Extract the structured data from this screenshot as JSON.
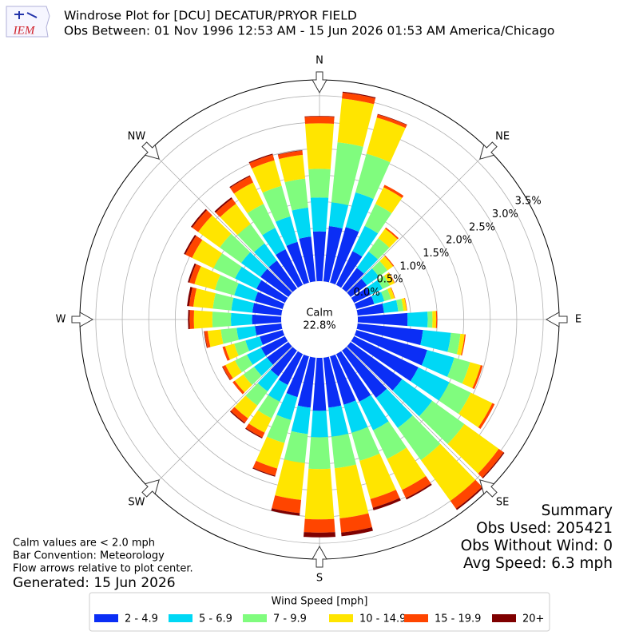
{
  "chart_data": {
    "type": "windrose",
    "logo": "IEM",
    "title": "Windrose Plot for [DCU] DECATUR/PRYOR FIELD",
    "subtitle": "Obs Between: 01 Nov 1996 12:53 AM - 15 Jun 2026 01:53 AM America/Chicago",
    "directions": [
      0,
      10,
      20,
      30,
      40,
      50,
      60,
      70,
      80,
      90,
      100,
      110,
      120,
      130,
      140,
      150,
      160,
      170,
      180,
      190,
      200,
      210,
      220,
      230,
      240,
      250,
      260,
      270,
      280,
      290,
      300,
      310,
      320,
      330,
      340,
      350
    ],
    "direction_labels": [
      {
        "value": 0,
        "label": "N"
      },
      {
        "value": 45,
        "label": "NE"
      },
      {
        "value": 90,
        "label": "E"
      },
      {
        "value": 135,
        "label": "SE"
      },
      {
        "value": 180,
        "label": "S"
      },
      {
        "value": 225,
        "label": "SW"
      },
      {
        "value": 270,
        "label": "W"
      },
      {
        "value": 315,
        "label": "NW"
      }
    ],
    "rlim": [
      0,
      3.8
    ],
    "rticks": [
      {
        "value": 0,
        "label": "0.0%"
      },
      {
        "value": 0.5,
        "label": "0.5%"
      },
      {
        "value": 1,
        "label": "1.0%"
      },
      {
        "value": 1.5,
        "label": "1.5%"
      },
      {
        "value": 2,
        "label": "2.0%"
      },
      {
        "value": 2.5,
        "label": "2.5%"
      },
      {
        "value": 3,
        "label": "3.0%"
      },
      {
        "value": 3.5,
        "label": "3.5%"
      }
    ],
    "grid": true,
    "calm_label": "Calm",
    "calm_value": 22.8,
    "calm_value_label": "22.8%",
    "legend_title": "Wind Speed [mph]",
    "series": [
      {
        "name": "2 - 4.9",
        "color": "#0b2ef5",
        "values": [
          0.94,
          1.05,
          1.09,
          0.71,
          0.48,
          0.38,
          0.35,
          0.35,
          0.5,
          0.94,
          1.24,
          1.39,
          1.35,
          1.2,
          1.1,
          1.0,
          0.95,
          0.95,
          1.0,
          0.95,
          0.8,
          0.65,
          0.6,
          0.5,
          0.5,
          0.45,
          0.5,
          0.55,
          0.55,
          0.55,
          0.6,
          0.65,
          0.65,
          0.75,
          0.8,
          0.85
        ]
      },
      {
        "name": "5 - 6.9",
        "color": "#00d8f5",
        "values": [
          0.64,
          0.45,
          0.68,
          0.53,
          0.38,
          0.28,
          0.25,
          0.2,
          0.27,
          0.38,
          0.53,
          0.53,
          0.65,
          0.7,
          0.7,
          0.6,
          0.55,
          0.55,
          0.5,
          0.5,
          0.45,
          0.35,
          0.35,
          0.3,
          0.3,
          0.28,
          0.35,
          0.4,
          0.4,
          0.4,
          0.45,
          0.45,
          0.4,
          0.45,
          0.5,
          0.55
        ]
      },
      {
        "name": "7 - 9.9",
        "color": "#80fc7e",
        "values": [
          0.54,
          1.14,
          0.76,
          0.46,
          0.31,
          0.2,
          0.15,
          0.13,
          0.1,
          0.09,
          0.18,
          0.31,
          0.45,
          0.75,
          0.75,
          0.6,
          0.55,
          0.6,
          0.6,
          0.55,
          0.45,
          0.35,
          0.33,
          0.25,
          0.25,
          0.22,
          0.3,
          0.35,
          0.35,
          0.38,
          0.45,
          0.5,
          0.45,
          0.5,
          0.6,
          0.55
        ]
      },
      {
        "name": "10 - 14.9",
        "color": "#ffe500",
        "values": [
          0.86,
          0.83,
          0.71,
          0.35,
          0.22,
          0.13,
          0.1,
          0.07,
          0.06,
          0.07,
          0.08,
          0.21,
          0.45,
          0.8,
          0.95,
          0.65,
          0.75,
          0.95,
          0.95,
          0.7,
          0.5,
          0.3,
          0.3,
          0.2,
          0.2,
          0.18,
          0.25,
          0.35,
          0.37,
          0.4,
          0.45,
          0.5,
          0.47,
          0.45,
          0.5,
          0.45
        ]
      },
      {
        "name": "15 - 19.9",
        "color": "#ff4500",
        "values": [
          0.13,
          0.11,
          0.06,
          0.05,
          0.03,
          0.02,
          0.01,
          0.01,
          0.01,
          0.02,
          0.02,
          0.04,
          0.05,
          0.11,
          0.18,
          0.17,
          0.17,
          0.27,
          0.25,
          0.25,
          0.14,
          0.1,
          0.1,
          0.05,
          0.06,
          0.05,
          0.06,
          0.08,
          0.08,
          0.1,
          0.14,
          0.14,
          0.12,
          0.13,
          0.11,
          0.08
        ]
      },
      {
        "name": "20+",
        "color": "#7f0000",
        "values": [
          0.01,
          0.02,
          0.01,
          0,
          0,
          0,
          0,
          0,
          0,
          0,
          0,
          0,
          0,
          0.02,
          0.03,
          0.03,
          0.05,
          0.07,
          0.09,
          0.05,
          0.02,
          0.02,
          0.02,
          0,
          0.01,
          0,
          0.01,
          0.03,
          0.04,
          0.03,
          0.03,
          0.03,
          0.03,
          0.02,
          0.02,
          0.01
        ]
      }
    ],
    "notes": [
      "Calm values are < 2.0 mph",
      "Bar Convention: Meteorology",
      "Flow arrows relative to plot center."
    ],
    "generated": "Generated: 15 Jun 2026",
    "summary": [
      "Summary",
      "Obs Used: 205421",
      "Obs Without Wind: 0",
      "Avg Speed: 6.3 mph"
    ]
  }
}
